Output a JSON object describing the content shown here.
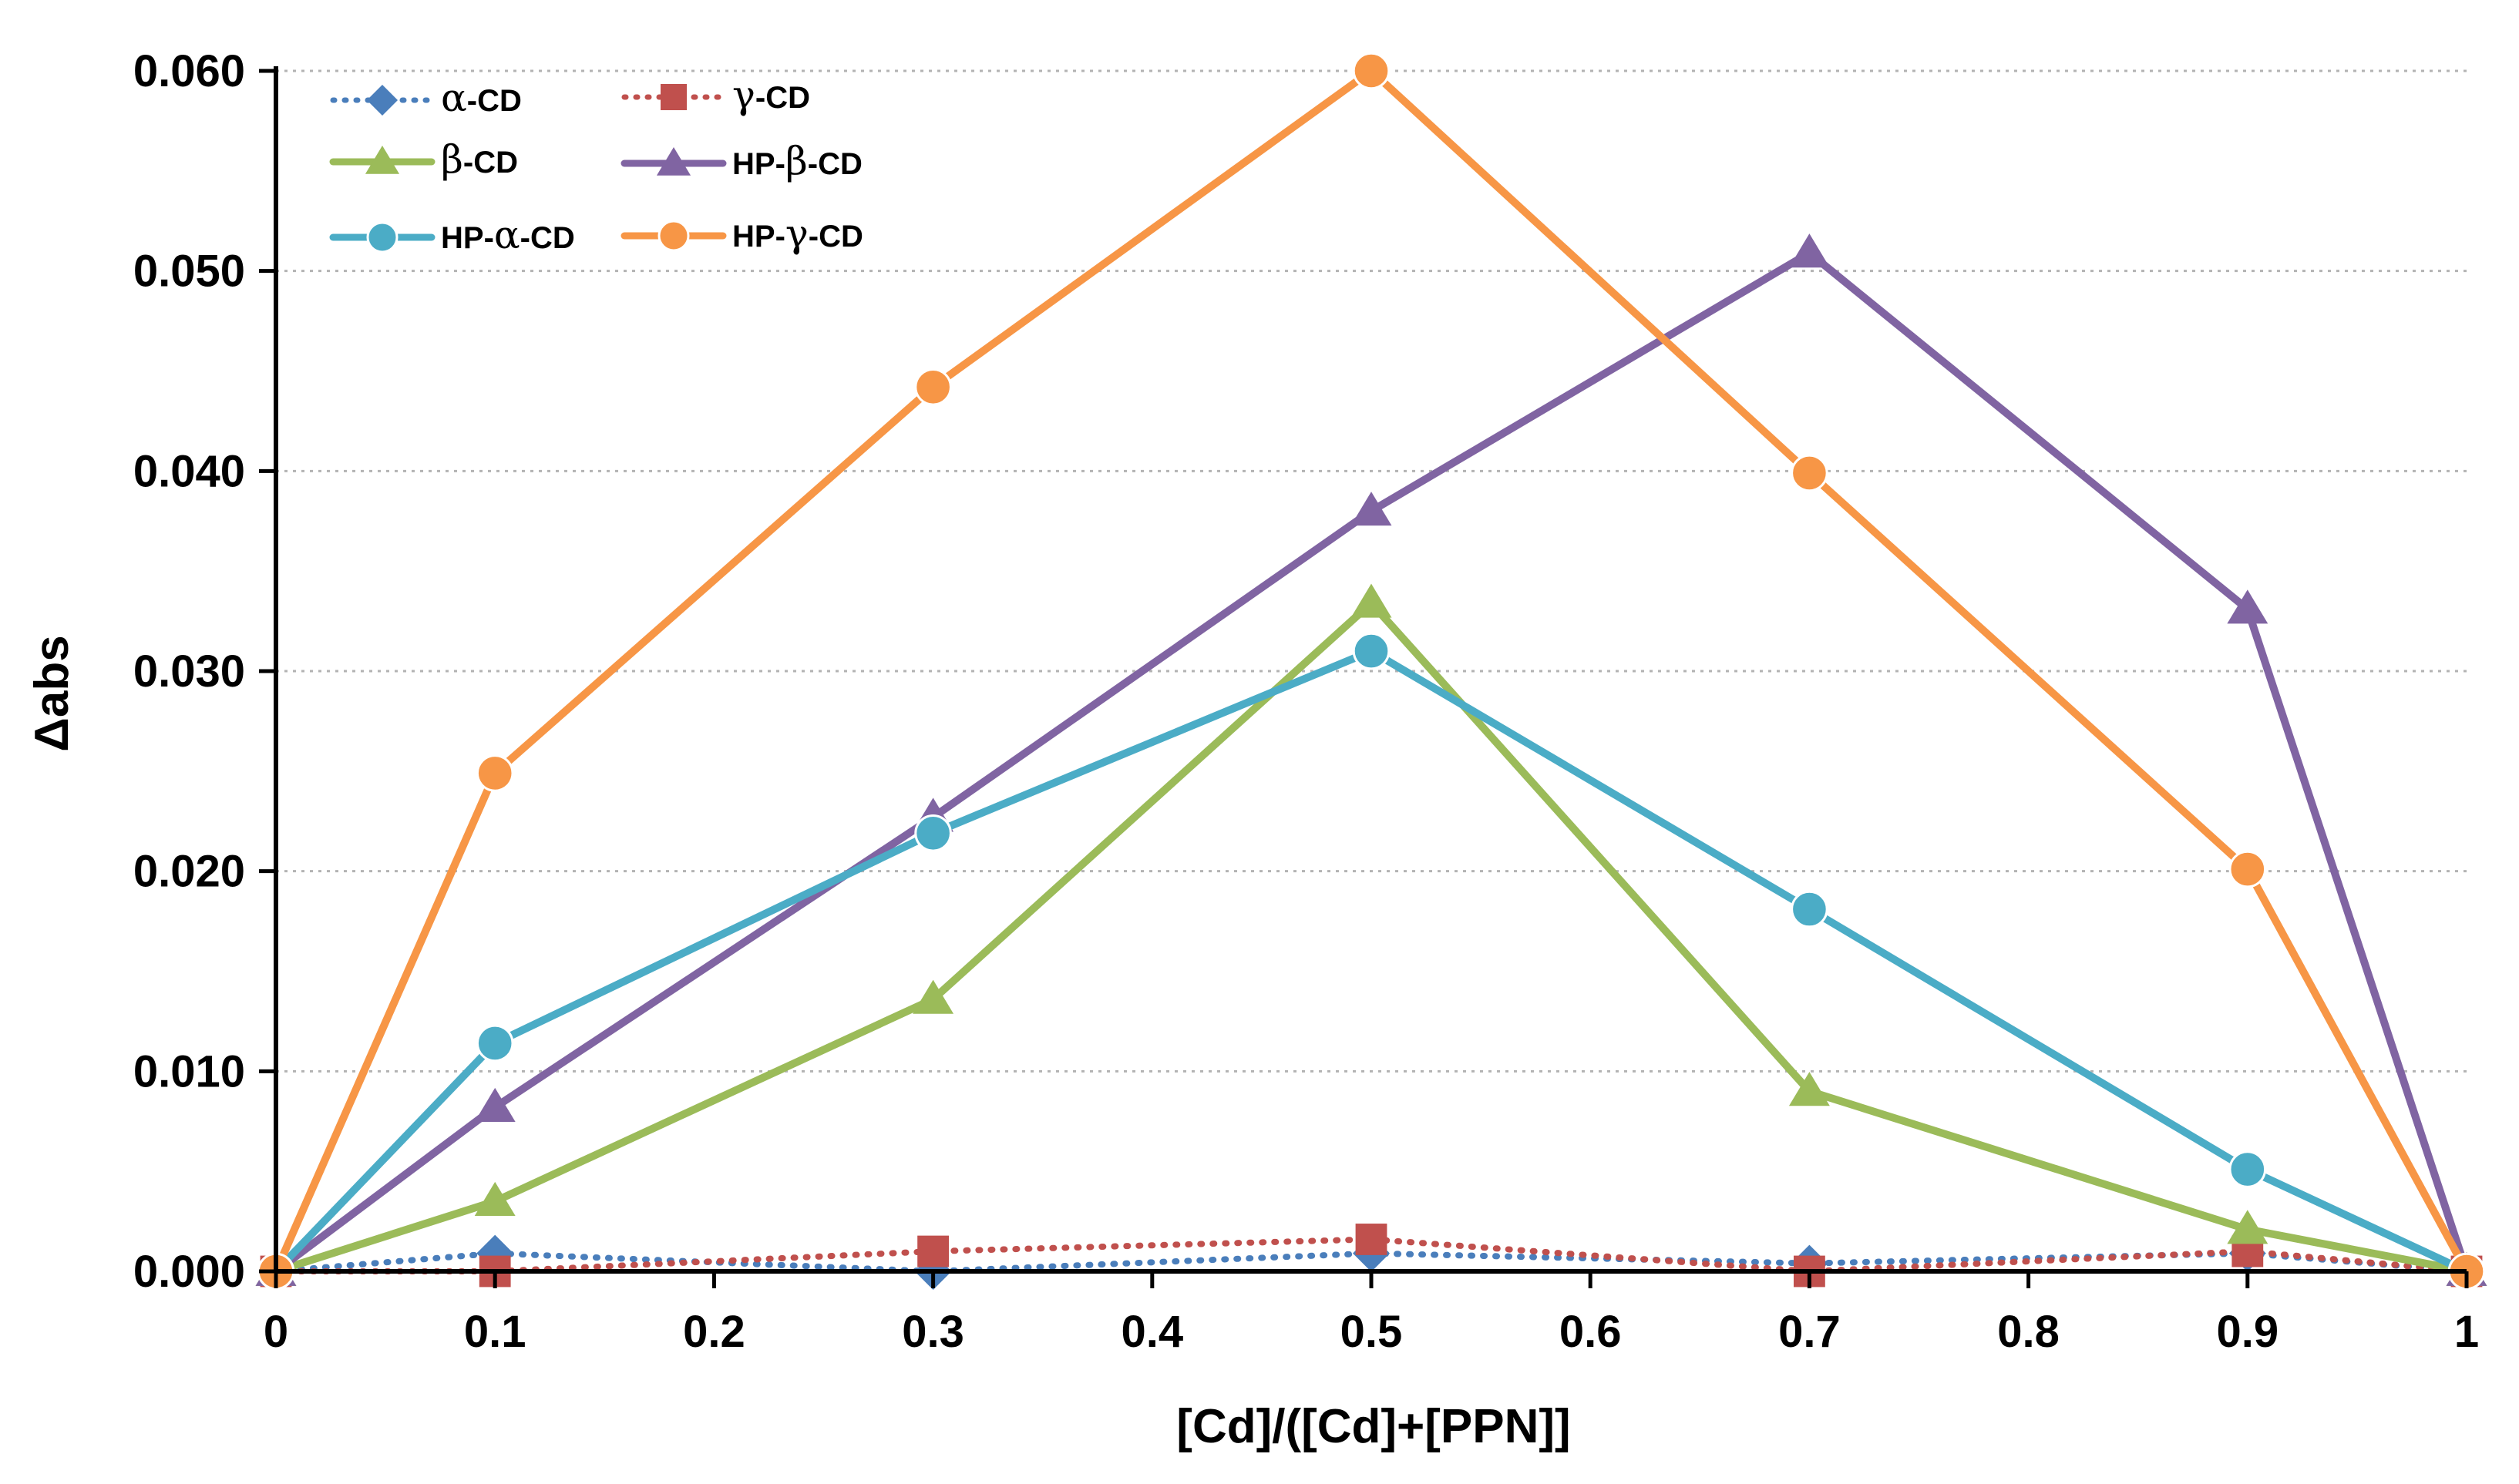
{
  "chart_data": {
    "type": "line",
    "title": "",
    "xlabel": "[Cd]/([Cd]+[PPN]]",
    "ylabel": "Δabs",
    "xlim": [
      0,
      1
    ],
    "ylim": [
      0,
      0.06
    ],
    "x_ticks": [
      "0",
      "0.1",
      "0.2",
      "0.3",
      "0.4",
      "0.5",
      "0.6",
      "0.7",
      "0.8",
      "0.9",
      "1"
    ],
    "y_ticks": [
      "0.000",
      "0.010",
      "0.020",
      "0.030",
      "0.040",
      "0.050",
      "0.060"
    ],
    "grid": "horizontal dotted",
    "legend_position": "top-left",
    "x": [
      0,
      0.1,
      0.3,
      0.5,
      0.7,
      0.9,
      1
    ],
    "series": [
      {
        "name": "α-CD",
        "prefix": "",
        "greek": "α",
        "suffix": "-CD",
        "color": "#4a7ebb",
        "marker": "diamond",
        "dash": "dotted",
        "values": [
          0.0,
          0.0009,
          0.0,
          0.0009,
          0.0004,
          0.0009,
          0.0
        ]
      },
      {
        "name": "γ-CD",
        "prefix": "",
        "greek": "γ",
        "suffix": "-CD",
        "color": "#c0504d",
        "marker": "square",
        "dash": "dotted",
        "values": [
          0.0,
          0.0,
          0.001,
          0.0016,
          0.0,
          0.001,
          0.0
        ]
      },
      {
        "name": "β-CD",
        "prefix": "",
        "greek": "β",
        "suffix": "-CD",
        "color": "#9bbb59",
        "marker": "triangle",
        "dash": "solid",
        "values": [
          0.0,
          0.0035,
          0.0136,
          0.0334,
          0.009,
          0.0021,
          0.0
        ]
      },
      {
        "name": "HP-β-CD",
        "prefix": "HP-",
        "greek": "β",
        "suffix": "-CD",
        "color": "#8064a2",
        "marker": "triangle",
        "dash": "solid",
        "values": [
          0.0,
          0.0082,
          0.0227,
          0.038,
          0.0509,
          0.0331,
          0.0
        ]
      },
      {
        "name": "HP-α-CD",
        "prefix": "HP-",
        "greek": "α",
        "suffix": "-CD",
        "color": "#4bacc6",
        "marker": "circle",
        "dash": "solid",
        "values": [
          0.0,
          0.0114,
          0.0219,
          0.031,
          0.0181,
          0.0051,
          0.0
        ]
      },
      {
        "name": "HP-γ-CD",
        "prefix": "HP-",
        "greek": "γ",
        "suffix": "-CD",
        "color": "#f79646",
        "marker": "circle",
        "dash": "solid",
        "values": [
          0.0,
          0.0249,
          0.0442,
          0.06,
          0.0399,
          0.0201,
          0.0
        ]
      }
    ]
  }
}
